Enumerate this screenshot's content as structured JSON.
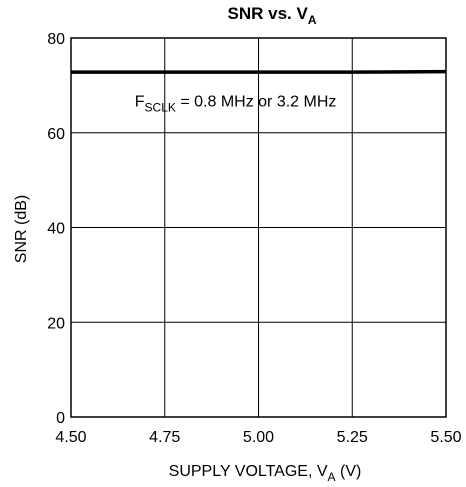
{
  "chart_data": {
    "type": "line",
    "title": {
      "main": "SNR vs. V",
      "sub": "A"
    },
    "xlabel": {
      "main": "SUPPLY VOLTAGE, V",
      "sub": "A",
      "tail": " (V)"
    },
    "ylabel": "SNR (dB)",
    "xlim": [
      4.5,
      5.5
    ],
    "ylim": [
      0,
      80
    ],
    "x_ticks": [
      "4.50",
      "4.75",
      "5.00",
      "5.25",
      "5.50"
    ],
    "y_ticks": [
      "0",
      "20",
      "40",
      "60",
      "80"
    ],
    "grid": true,
    "annotation": {
      "prefix": "F",
      "sub": "SCLK",
      "text": " = 0.8 MHz or 3.2 MHz",
      "anchor": [
        4.51,
        65.5
      ]
    },
    "series": [
      {
        "x": [
          4.5,
          4.75,
          5.0,
          5.25,
          5.5
        ],
        "values": [
          72.8,
          72.8,
          72.8,
          72.8,
          72.9
        ]
      }
    ]
  }
}
